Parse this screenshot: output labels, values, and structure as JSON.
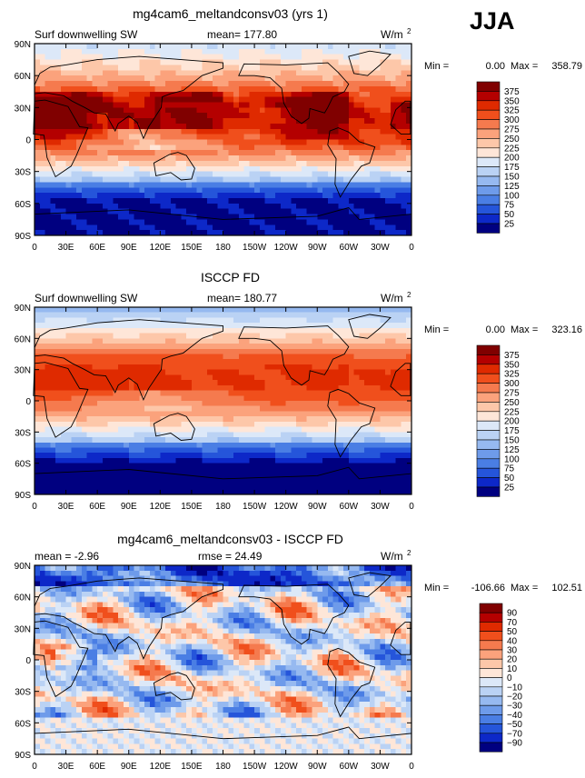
{
  "season": "JJA",
  "chart_data": [
    {
      "type": "heatmap",
      "title": "mg4cam6_meltandconsv03 (yrs 1)",
      "variable": "Surf downwelling SW",
      "mean_label": "mean=",
      "mean": "177.80",
      "units": "W/m",
      "units_sup": "2",
      "min_label": "Min =",
      "min": "0.00",
      "max_label": "Max =",
      "max": "358.79",
      "x_ticks": [
        "0",
        "30E",
        "60E",
        "90E",
        "120E",
        "150E",
        "180",
        "150W",
        "120W",
        "90W",
        "60W",
        "30W",
        "0"
      ],
      "y_ticks": [
        "90N",
        "60N",
        "30N",
        "0",
        "30S",
        "60S",
        "90S"
      ],
      "xlim": [
        0,
        360
      ],
      "ylim": [
        -90,
        90
      ],
      "colorbar_levels": [
        "375",
        "350",
        "325",
        "300",
        "275",
        "250",
        "225",
        "200",
        "175",
        "150",
        "125",
        "100",
        "75",
        "50",
        "25"
      ],
      "colorbar_colors": [
        "#800000",
        "#b40000",
        "#df2a00",
        "#f04f1c",
        "#f57a4e",
        "#fba27c",
        "#fdc7a9",
        "#fee6d8",
        "#dce8f8",
        "#bad2f4",
        "#96b9f0",
        "#6e9bea",
        "#4a7ee4",
        "#2555da",
        "#0d28c8",
        "#000080"
      ]
    },
    {
      "type": "heatmap",
      "title": "ISCCP FD",
      "variable": "Surf downwelling SW",
      "mean_label": "mean=",
      "mean": "180.77",
      "units": "W/m",
      "units_sup": "2",
      "min_label": "Min =",
      "min": "0.00",
      "max_label": "Max =",
      "max": "323.16",
      "x_ticks": [
        "0",
        "30E",
        "60E",
        "90E",
        "120E",
        "150E",
        "180",
        "150W",
        "120W",
        "90W",
        "60W",
        "30W",
        "0"
      ],
      "y_ticks": [
        "90N",
        "60N",
        "30N",
        "0",
        "30S",
        "60S",
        "90S"
      ],
      "xlim": [
        0,
        360
      ],
      "ylim": [
        -90,
        90
      ],
      "colorbar_levels": [
        "375",
        "350",
        "325",
        "300",
        "275",
        "250",
        "225",
        "200",
        "175",
        "150",
        "125",
        "100",
        "75",
        "50",
        "25"
      ],
      "colorbar_colors": [
        "#800000",
        "#b40000",
        "#df2a00",
        "#f04f1c",
        "#f57a4e",
        "#fba27c",
        "#fdc7a9",
        "#fee6d8",
        "#dce8f8",
        "#bad2f4",
        "#96b9f0",
        "#6e9bea",
        "#4a7ee4",
        "#2555da",
        "#0d28c8",
        "#000080"
      ]
    },
    {
      "type": "heatmap",
      "title": "mg4cam6_meltandconsv03 - ISCCP FD",
      "mean_label": "mean =",
      "mean": "-2.96",
      "rmse_label": "rmse =",
      "rmse": "24.49",
      "units": "W/m",
      "units_sup": "2",
      "min_label": "Min =",
      "min": "-106.66",
      "max_label": "Max =",
      "max": "102.51",
      "x_ticks": [
        "0",
        "30E",
        "60E",
        "90E",
        "120E",
        "150E",
        "180",
        "150W",
        "120W",
        "90W",
        "60W",
        "30W",
        "0"
      ],
      "y_ticks": [
        "90N",
        "60N",
        "30N",
        "0",
        "30S",
        "60S",
        "90S"
      ],
      "xlim": [
        0,
        360
      ],
      "ylim": [
        -90,
        90
      ],
      "colorbar_levels": [
        "90",
        "70",
        "50",
        "40",
        "30",
        "20",
        "10",
        "0",
        "−10",
        "−20",
        "−30",
        "−40",
        "−50",
        "−70",
        "−90"
      ],
      "colorbar_colors": [
        "#800000",
        "#b40000",
        "#df2a00",
        "#f04f1c",
        "#f57a4e",
        "#fba27c",
        "#fdc7a9",
        "#fee6d8",
        "#dce8f8",
        "#bad2f4",
        "#96b9f0",
        "#6e9bea",
        "#4a7ee4",
        "#2555da",
        "#0d28c8",
        "#000080"
      ]
    }
  ]
}
